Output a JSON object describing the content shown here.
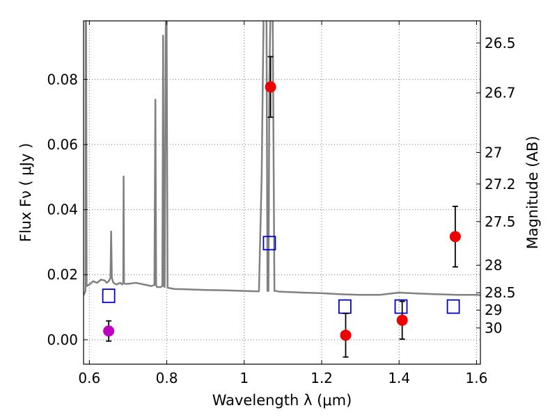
{
  "chart_data": {
    "type": "scatter",
    "xlabel": "Wavelength  λ (μm)",
    "ylabel": "Flux  Fν  ( μJy )",
    "ylabel_right": "Magnitude (AB)",
    "xlim": [
      0.585,
      1.61
    ],
    "ylim": [
      -0.0075,
      0.098
    ],
    "grid": true,
    "x_ticks": [
      {
        "value": 0.6,
        "label": "0.6"
      },
      {
        "value": 0.8,
        "label": "0.8"
      },
      {
        "value": 1.0,
        "label": "1"
      },
      {
        "value": 1.2,
        "label": "1.2"
      },
      {
        "value": 1.4,
        "label": "1.4"
      },
      {
        "value": 1.6,
        "label": "1.6"
      }
    ],
    "y_ticks": [
      {
        "value": 0.0,
        "label": "0.00"
      },
      {
        "value": 0.02,
        "label": "0.02"
      },
      {
        "value": 0.04,
        "label": "0.04"
      },
      {
        "value": 0.06,
        "label": "0.06"
      },
      {
        "value": 0.08,
        "label": "0.08"
      }
    ],
    "right_ticks": [
      {
        "mag": 26.5,
        "label": "26.5"
      },
      {
        "mag": 26.7,
        "label": "26.7"
      },
      {
        "mag": 27.0,
        "label": "27"
      },
      {
        "mag": 27.2,
        "label": "27.2"
      },
      {
        "mag": 27.5,
        "label": "27.5"
      },
      {
        "mag": 28.0,
        "label": "28"
      },
      {
        "mag": 28.5,
        "label": "28.5"
      },
      {
        "mag": 29.0,
        "label": "29"
      },
      {
        "mag": 30.0,
        "label": "30"
      }
    ],
    "model_spectrum": {
      "color": "#808080",
      "x": [
        0.585,
        0.59,
        0.5905,
        0.5915,
        0.593,
        0.6,
        0.61,
        0.62,
        0.63,
        0.64,
        0.645,
        0.65,
        0.6545,
        0.6563,
        0.6581,
        0.662,
        0.67,
        0.68,
        0.685,
        0.6875,
        0.6885,
        0.6895,
        0.692,
        0.7,
        0.72,
        0.74,
        0.76,
        0.768,
        0.7705,
        0.7725,
        0.7745,
        0.778,
        0.785,
        0.7885,
        0.7905,
        0.7925,
        0.7945,
        0.7975,
        0.7995,
        0.802,
        0.82,
        0.85,
        0.9,
        0.95,
        1.0,
        1.03,
        1.038,
        1.045,
        1.05,
        1.055,
        1.0575,
        1.06,
        1.0625,
        1.065,
        1.0675,
        1.0705,
        1.0735,
        1.078,
        1.082,
        1.09,
        1.15,
        1.2,
        1.25,
        1.3,
        1.35,
        1.4,
        1.45,
        1.5,
        1.55,
        1.6,
        1.61
      ],
      "y": [
        0.0137,
        0.015,
        0.1,
        0.1,
        0.0165,
        0.017,
        0.018,
        0.0175,
        0.0185,
        0.0182,
        0.0175,
        0.018,
        0.019,
        0.0333,
        0.019,
        0.0175,
        0.017,
        0.0175,
        0.017,
        0.0175,
        0.0502,
        0.0175,
        0.0172,
        0.0172,
        0.0175,
        0.017,
        0.0165,
        0.0168,
        0.0738,
        0.0168,
        0.0162,
        0.0162,
        0.0162,
        0.0165,
        0.0935,
        0.0165,
        0.0162,
        0.1,
        0.1,
        0.016,
        0.0156,
        0.0155,
        0.0153,
        0.0152,
        0.015,
        0.0149,
        0.0149,
        0.05,
        0.1,
        0.1,
        0.1,
        0.015,
        0.015,
        0.08,
        0.1,
        0.1,
        0.1,
        0.015,
        0.015,
        0.0148,
        0.0145,
        0.0143,
        0.014,
        0.0138,
        0.0138,
        0.0145,
        0.0142,
        0.014,
        0.0138,
        0.0138,
        0.0137
      ]
    },
    "model_bands": {
      "color": "#0000cc",
      "x": [
        0.65,
        1.065,
        1.26,
        1.405,
        1.54
      ],
      "y": [
        0.0135,
        0.0297,
        0.0102,
        0.0102,
        0.0102
      ]
    },
    "observed": [
      {
        "x": 0.65,
        "y": 0.0027,
        "yerr": 0.0031,
        "color": "#bf00bf"
      },
      {
        "x": 1.068,
        "y": 0.0777,
        "yerr": 0.0093,
        "color": "#ee0000"
      },
      {
        "x": 1.262,
        "y": 0.0014,
        "yerr": 0.0067,
        "color": "#ee0000"
      },
      {
        "x": 1.408,
        "y": 0.006,
        "yerr": 0.0058,
        "color": "#ee0000"
      },
      {
        "x": 1.545,
        "y": 0.0317,
        "yerr": 0.0093,
        "color": "#ee0000"
      }
    ]
  }
}
